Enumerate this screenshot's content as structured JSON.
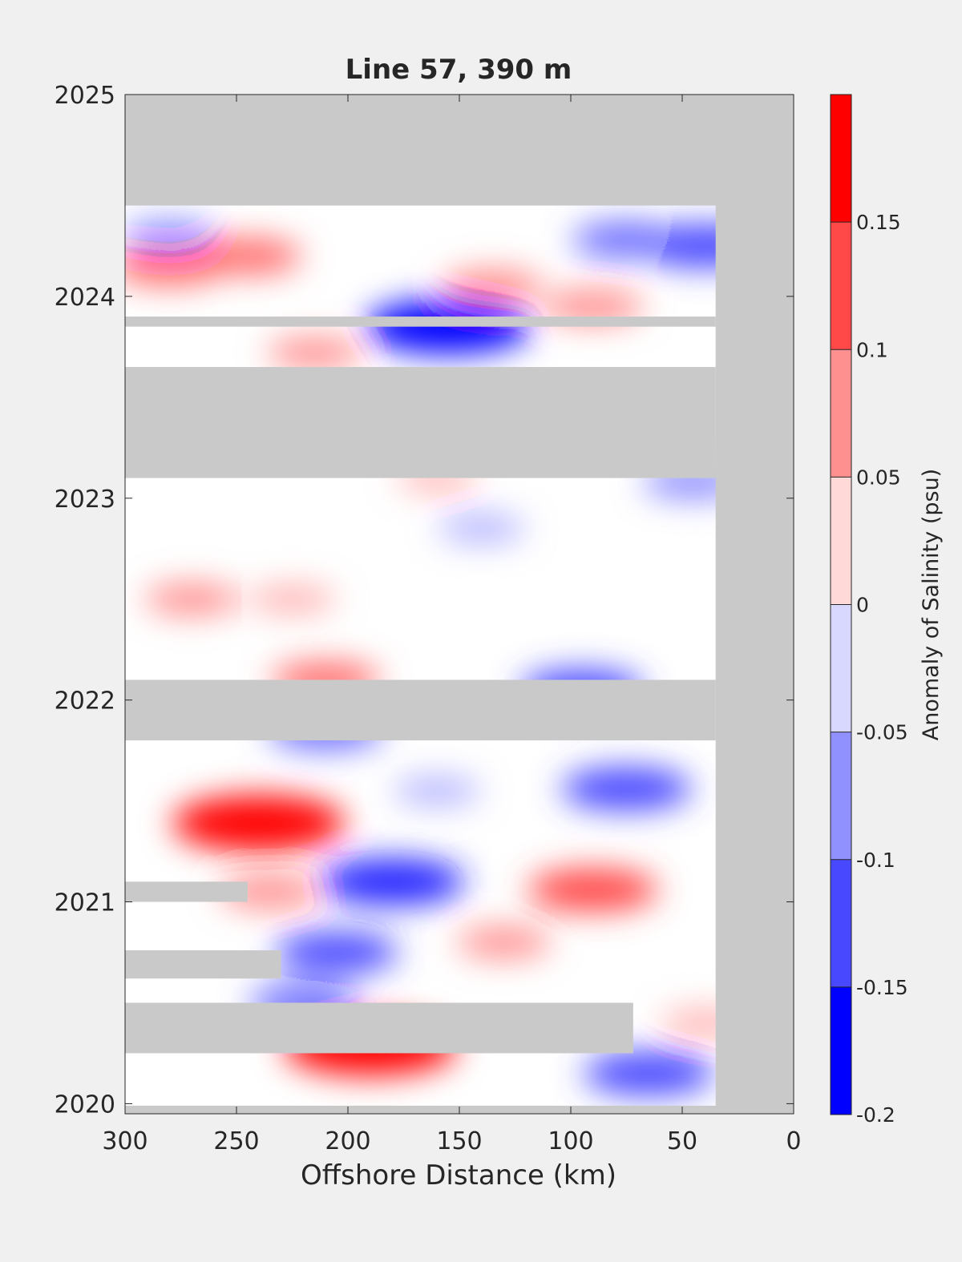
{
  "chart_data": {
    "type": "heatmap",
    "title": "Line 57, 390 m",
    "xlabel": "Offshore Distance (km)",
    "ylabel": "",
    "x_reversed": true,
    "xlim": [
      0,
      300
    ],
    "ylim": [
      2019.95,
      2025
    ],
    "x_ticks": [
      300,
      250,
      200,
      150,
      100,
      50,
      0
    ],
    "y_ticks": [
      2020,
      2021,
      2022,
      2023,
      2024,
      2025
    ],
    "colorbar": {
      "label": "Anomaly of Salinity (psu)",
      "range": [
        -0.2,
        0.2
      ],
      "ticks": [
        0.15,
        0.1,
        0.05,
        0,
        -0.05,
        -0.1,
        -0.15,
        -0.2
      ],
      "levels": [
        {
          "lo": -0.2,
          "hi": -0.175,
          "color": "#0000ff"
        },
        {
          "lo": -0.175,
          "hi": -0.15,
          "color": "#2525ff"
        },
        {
          "lo": -0.15,
          "hi": -0.125,
          "color": "#4848ff"
        },
        {
          "lo": -0.125,
          "hi": -0.1,
          "color": "#6c6cff"
        },
        {
          "lo": -0.1,
          "hi": -0.075,
          "color": "#9090ff"
        },
        {
          "lo": -0.075,
          "hi": -0.05,
          "color": "#b4b4ff"
        },
        {
          "lo": -0.05,
          "hi": -0.025,
          "color": "#d8d8ff"
        },
        {
          "lo": -0.025,
          "hi": 0,
          "color": "#ffffff"
        },
        {
          "lo": 0,
          "hi": 0.025,
          "color": "#ffffff"
        },
        {
          "lo": 0.025,
          "hi": 0.05,
          "color": "#ffd8d8"
        },
        {
          "lo": 0.05,
          "hi": 0.075,
          "color": "#ffb4b4"
        },
        {
          "lo": 0.075,
          "hi": 0.1,
          "color": "#ff9090"
        },
        {
          "lo": 0.1,
          "hi": 0.125,
          "color": "#ff6c6c"
        },
        {
          "lo": 0.125,
          "hi": 0.15,
          "color": "#ff4848"
        },
        {
          "lo": 0.15,
          "hi": 0.175,
          "color": "#ff2525"
        },
        {
          "lo": 0.175,
          "hi": 0.2,
          "color": "#ff0000"
        }
      ]
    },
    "no_data_color": "#c9c9c9",
    "no_data_regions": [
      {
        "x": [
          0,
          300
        ],
        "y": [
          2024.45,
          2025
        ]
      },
      {
        "x": [
          0,
          35
        ],
        "y": [
          2019.95,
          2025
        ]
      },
      {
        "x": [
          0,
          300
        ],
        "y": [
          2019.95,
          2019.99
        ]
      },
      {
        "x": [
          35,
          300
        ],
        "y": [
          2023.85,
          2023.9
        ]
      },
      {
        "x": [
          35,
          300
        ],
        "y": [
          2023.1,
          2023.65
        ]
      },
      {
        "x": [
          35,
          300
        ],
        "y": [
          2021.8,
          2022.1
        ]
      },
      {
        "x": [
          245,
          300
        ],
        "y": [
          2021.0,
          2021.1
        ]
      },
      {
        "x": [
          230,
          300
        ],
        "y": [
          2020.62,
          2020.76
        ]
      },
      {
        "x": [
          72,
          300
        ],
        "y": [
          2020.25,
          2020.5
        ]
      }
    ],
    "anomaly_features": [
      {
        "x": 240,
        "y": 2021.39,
        "value": 0.18
      },
      {
        "x": 190,
        "y": 2020.28,
        "value": 0.18
      },
      {
        "x": 90,
        "y": 2021.06,
        "value": 0.12
      },
      {
        "x": 280,
        "y": 2024.15,
        "value": 0.1
      },
      {
        "x": 245,
        "y": 2024.2,
        "value": 0.09
      },
      {
        "x": 135,
        "y": 2024.05,
        "value": 0.08
      },
      {
        "x": 90,
        "y": 2023.95,
        "value": 0.08
      },
      {
        "x": 215,
        "y": 2023.72,
        "value": 0.07
      },
      {
        "x": 270,
        "y": 2022.5,
        "value": 0.07
      },
      {
        "x": 225,
        "y": 2022.5,
        "value": 0.06
      },
      {
        "x": 160,
        "y": 2023.1,
        "value": 0.05
      },
      {
        "x": 130,
        "y": 2020.8,
        "value": 0.07
      },
      {
        "x": 235,
        "y": 2021.05,
        "value": 0.08
      },
      {
        "x": 210,
        "y": 2022.1,
        "value": 0.09
      },
      {
        "x": 40,
        "y": 2020.4,
        "value": 0.06
      },
      {
        "x": 155,
        "y": 2023.85,
        "value": -0.17
      },
      {
        "x": 180,
        "y": 2021.1,
        "value": -0.14
      },
      {
        "x": 75,
        "y": 2021.56,
        "value": -0.12
      },
      {
        "x": 40,
        "y": 2024.25,
        "value": -0.12
      },
      {
        "x": 75,
        "y": 2024.28,
        "value": -0.09
      },
      {
        "x": 65,
        "y": 2020.15,
        "value": -0.12
      },
      {
        "x": 205,
        "y": 2020.75,
        "value": -0.11
      },
      {
        "x": 95,
        "y": 2022.05,
        "value": -0.11
      },
      {
        "x": 210,
        "y": 2021.85,
        "value": -0.1
      },
      {
        "x": 280,
        "y": 2024.3,
        "value": -0.07
      },
      {
        "x": 45,
        "y": 2023.08,
        "value": -0.08
      },
      {
        "x": 220,
        "y": 2020.5,
        "value": -0.09
      },
      {
        "x": 160,
        "y": 2021.55,
        "value": -0.06
      },
      {
        "x": 140,
        "y": 2022.85,
        "value": -0.06
      }
    ]
  }
}
